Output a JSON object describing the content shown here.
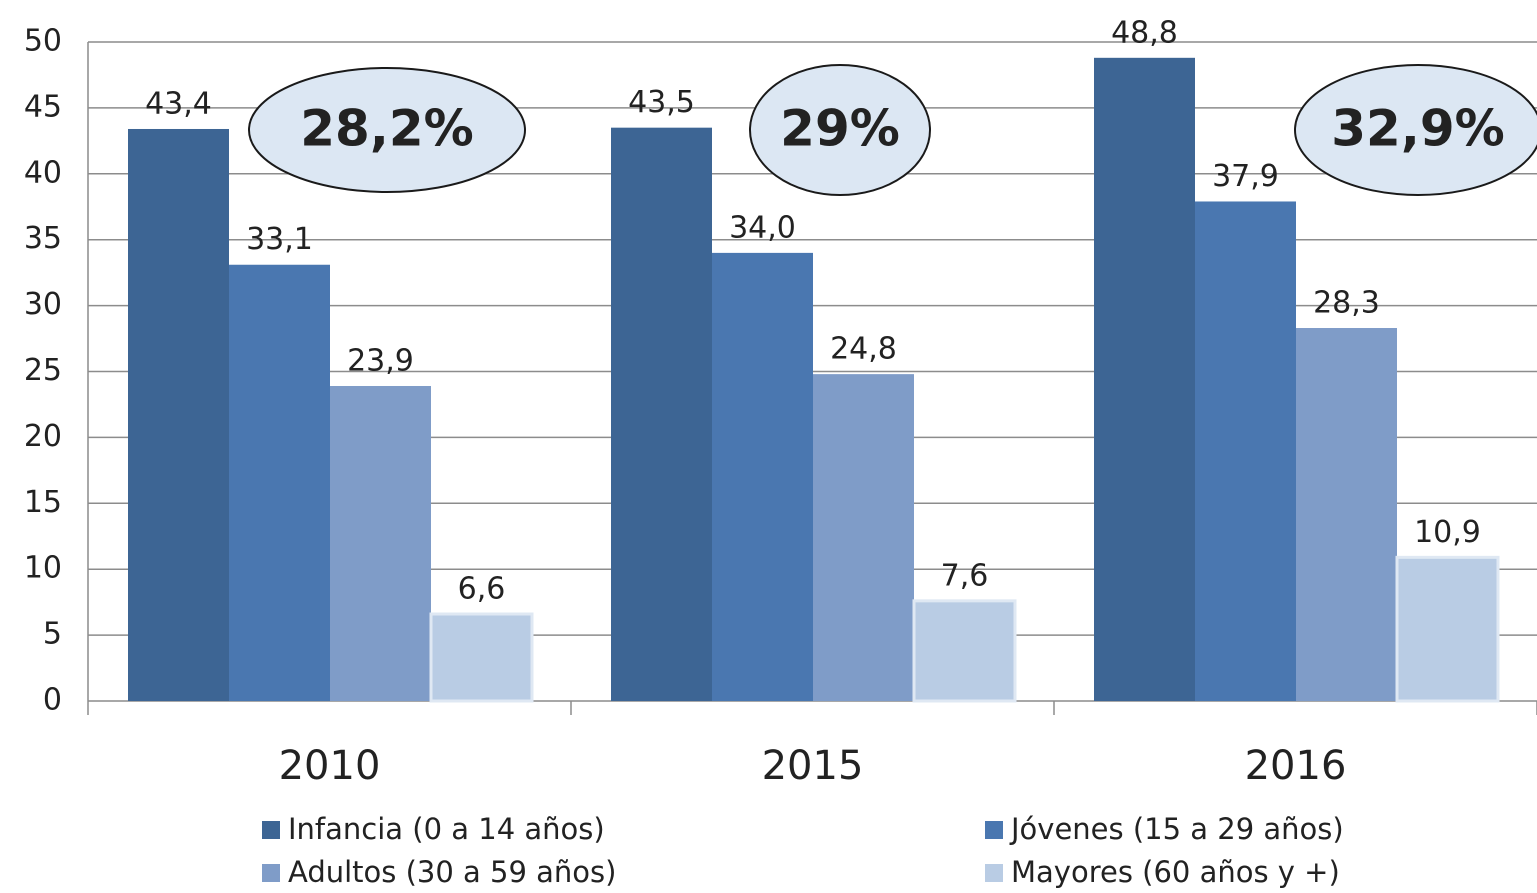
{
  "chart_data": {
    "type": "bar",
    "categories": [
      "2010",
      "2015",
      "2016"
    ],
    "series": [
      {
        "name": "Infancia (0 a 14 años)",
        "color": "#3d6594",
        "values": [
          43.4,
          43.5,
          48.8
        ],
        "value_labels": [
          "43,4",
          "43,5",
          "48,8"
        ]
      },
      {
        "name": "Jóvenes (15 a 29 años)",
        "color": "#4a77b0",
        "values": [
          33.1,
          34.0,
          37.9
        ],
        "value_labels": [
          "33,1",
          "34,0",
          "37,9"
        ]
      },
      {
        "name": "Adultos (30 a 59 años)",
        "color": "#7f9cc8",
        "values": [
          23.9,
          24.8,
          28.3
        ],
        "value_labels": [
          "23,9",
          "24,8",
          "28,3"
        ]
      },
      {
        "name": "Mayores (60 años y +)",
        "color": "#b9cce4",
        "values": [
          6.6,
          7.6,
          10.9
        ],
        "value_labels": [
          "6,6",
          "7,6",
          "10,9"
        ]
      }
    ],
    "annotations": [
      "28,2%",
      "29%",
      "32,9%"
    ],
    "ylim": [
      0,
      50
    ],
    "yticks": [
      0,
      5,
      10,
      15,
      20,
      25,
      30,
      35,
      40,
      45,
      50
    ],
    "grid": true,
    "legend": "bottom"
  }
}
